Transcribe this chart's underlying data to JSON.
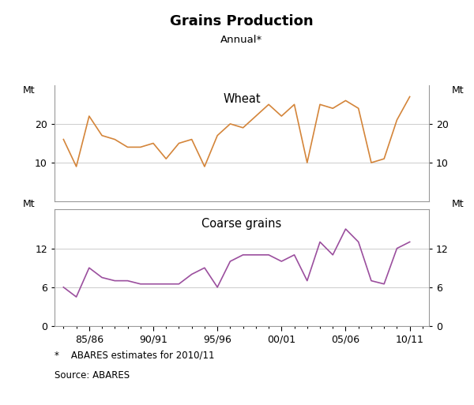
{
  "title": "Grains Production",
  "subtitle": "Annual*",
  "footnote1": "*    ABARES estimates for 2010/11",
  "footnote2": "Source: ABARES",
  "wheat_label": "Wheat",
  "coarse_label": "Coarse grains",
  "ylabel": "Mt",
  "x_tick_labels": [
    "85/86",
    "90/91",
    "95/96",
    "00/01",
    "05/06",
    "10/11"
  ],
  "x_tick_positions": [
    1985,
    1990,
    1995,
    2000,
    2005,
    2010
  ],
  "x_minor_ticks": [
    1983,
    1984,
    1985,
    1986,
    1987,
    1988,
    1989,
    1990,
    1991,
    1992,
    1993,
    1994,
    1995,
    1996,
    1997,
    1998,
    1999,
    2000,
    2001,
    2002,
    2003,
    2004,
    2005,
    2006,
    2007,
    2008,
    2009,
    2010,
    2011
  ],
  "wheat_color": "#d4853a",
  "coarse_color": "#9b4f9e",
  "grid_color": "#cccccc",
  "spine_color": "#999999",
  "wheat_ylim": [
    0,
    30
  ],
  "wheat_yticks": [
    10,
    20
  ],
  "coarse_ylim": [
    0,
    18
  ],
  "coarse_yticks": [
    0,
    6,
    12
  ],
  "xlim": [
    1982.3,
    2011.5
  ],
  "years": [
    1983,
    1984,
    1985,
    1986,
    1987,
    1988,
    1989,
    1990,
    1991,
    1992,
    1993,
    1994,
    1995,
    1996,
    1997,
    1998,
    1999,
    2000,
    2001,
    2002,
    2003,
    2004,
    2005,
    2006,
    2007,
    2008,
    2009,
    2010
  ],
  "wheat_values": [
    16,
    9,
    22,
    17,
    16,
    14,
    14,
    15,
    11,
    15,
    16,
    9,
    17,
    20,
    19,
    22,
    25,
    22,
    25,
    10,
    25,
    24,
    26,
    24,
    10,
    11,
    21,
    27
  ],
  "coarse_values": [
    6,
    4.5,
    9,
    7.5,
    7,
    7,
    6.5,
    6.5,
    6.5,
    6.5,
    8,
    9,
    6,
    10,
    11,
    11,
    11,
    10,
    11,
    7,
    13,
    11,
    15,
    13,
    7,
    6.5,
    12,
    13
  ]
}
